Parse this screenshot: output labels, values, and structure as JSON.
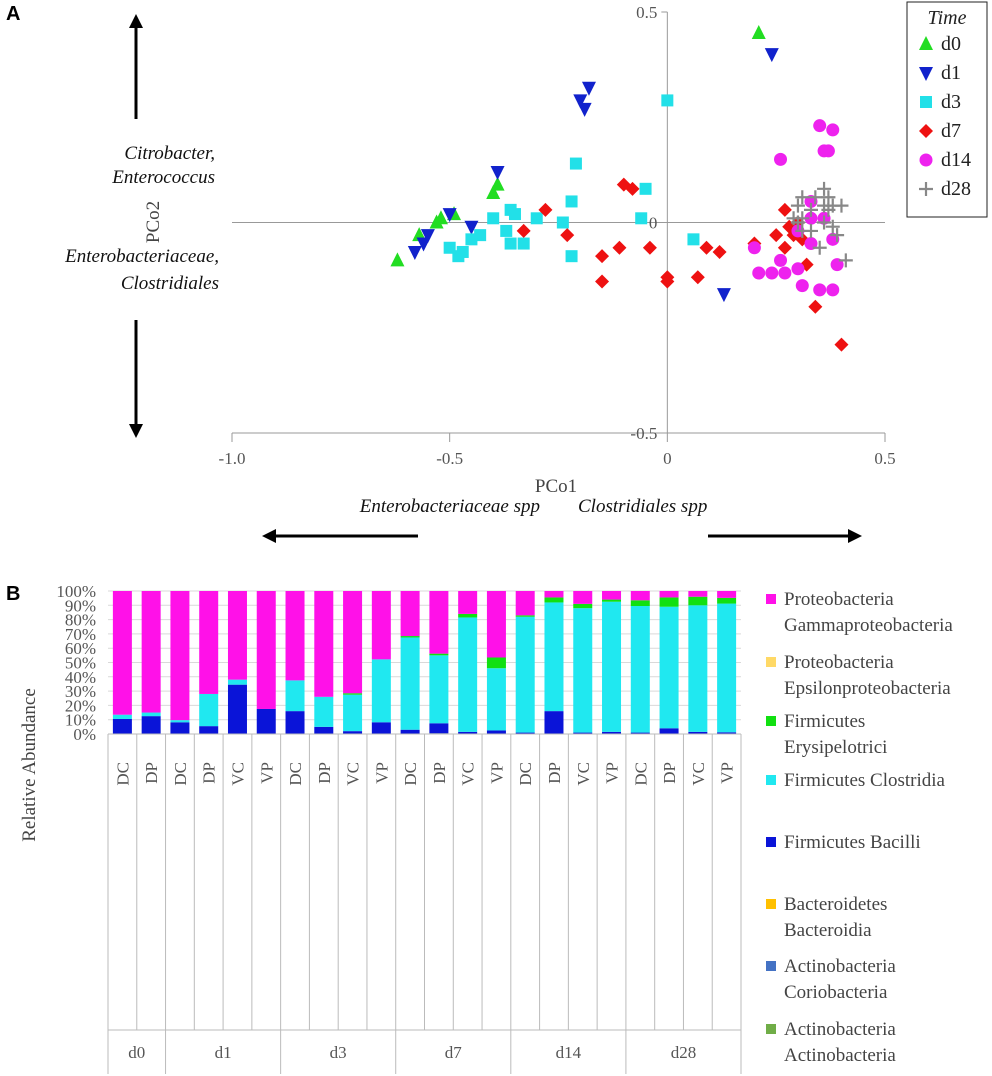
{
  "chart_data": [
    {
      "panel": "A",
      "type": "scatter",
      "xlabel": "PCo1",
      "ylabel": "PCo2",
      "xlim": [
        -1.0,
        0.5
      ],
      "ylim": [
        -0.5,
        0.5
      ],
      "xticks": [
        -1.0,
        -0.5,
        0,
        0.5
      ],
      "xtick_labels": [
        "-1.0",
        "-0.5",
        "0",
        "0.5"
      ],
      "yticks": [
        0.5,
        0,
        -0.5
      ],
      "ytick_labels": [
        "0.5",
        "0",
        "-0.5"
      ],
      "legend_title": "Time",
      "annotations": {
        "y_up_1": "Citrobacter,",
        "y_up_2": "Enterococcus",
        "y_down_1": "Enterobacteriaceae,",
        "y_down_2": "Clostridiales",
        "x_left": "Enterobacteriaceae spp",
        "x_right": "Clostridiales spp"
      },
      "series": [
        {
          "name": "d0",
          "color": "#22dd22",
          "marker": "triangle-up",
          "points": [
            [
              0.21,
              0.45
            ],
            [
              -0.62,
              -0.09
            ],
            [
              -0.53,
              0.0
            ],
            [
              -0.52,
              0.01
            ],
            [
              -0.49,
              0.02
            ],
            [
              -0.4,
              0.07
            ],
            [
              -0.39,
              0.09
            ],
            [
              -0.57,
              -0.03
            ]
          ]
        },
        {
          "name": "d1",
          "color": "#1122cc",
          "marker": "triangle-down",
          "points": [
            [
              0.24,
              0.4
            ],
            [
              -0.18,
              0.32
            ],
            [
              -0.2,
              0.29
            ],
            [
              -0.19,
              0.27
            ],
            [
              -0.39,
              0.12
            ],
            [
              -0.5,
              0.02
            ],
            [
              -0.45,
              -0.01
            ],
            [
              -0.55,
              -0.03
            ],
            [
              -0.56,
              -0.05
            ],
            [
              -0.58,
              -0.07
            ],
            [
              0.13,
              -0.17
            ]
          ]
        },
        {
          "name": "d3",
          "color": "#22e0e8",
          "marker": "square",
          "points": [
            [
              0.0,
              0.29
            ],
            [
              -0.21,
              0.14
            ],
            [
              -0.05,
              0.08
            ],
            [
              -0.22,
              0.05
            ],
            [
              -0.4,
              0.01
            ],
            [
              -0.36,
              0.03
            ],
            [
              -0.35,
              0.02
            ],
            [
              -0.33,
              -0.05
            ],
            [
              -0.37,
              -0.02
            ],
            [
              -0.36,
              -0.05
            ],
            [
              -0.22,
              -0.08
            ],
            [
              -0.06,
              0.01
            ],
            [
              0.06,
              -0.04
            ],
            [
              -0.47,
              -0.07
            ],
            [
              -0.48,
              -0.08
            ],
            [
              -0.5,
              -0.06
            ],
            [
              -0.45,
              -0.04
            ],
            [
              -0.43,
              -0.03
            ],
            [
              -0.24,
              0.0
            ],
            [
              -0.3,
              0.01
            ]
          ]
        },
        {
          "name": "d7",
          "color": "#ee1111",
          "marker": "diamond",
          "points": [
            [
              -0.1,
              0.09
            ],
            [
              -0.08,
              0.08
            ],
            [
              -0.28,
              0.03
            ],
            [
              -0.33,
              -0.02
            ],
            [
              -0.23,
              -0.03
            ],
            [
              -0.15,
              -0.08
            ],
            [
              -0.11,
              -0.06
            ],
            [
              -0.04,
              -0.06
            ],
            [
              0.0,
              -0.13
            ],
            [
              0.0,
              -0.14
            ],
            [
              0.07,
              -0.13
            ],
            [
              0.09,
              -0.06
            ],
            [
              0.12,
              -0.07
            ],
            [
              0.2,
              -0.05
            ],
            [
              -0.15,
              -0.14
            ],
            [
              0.27,
              0.03
            ],
            [
              0.25,
              -0.03
            ],
            [
              0.29,
              -0.03
            ],
            [
              0.27,
              -0.06
            ],
            [
              0.32,
              -0.1
            ],
            [
              0.4,
              -0.29
            ],
            [
              0.34,
              -0.2
            ],
            [
              0.3,
              0.0
            ],
            [
              0.28,
              -0.01
            ],
            [
              0.31,
              -0.04
            ]
          ]
        },
        {
          "name": "d14",
          "color": "#ee22ee",
          "marker": "circle",
          "points": [
            [
              0.35,
              0.23
            ],
            [
              0.38,
              0.22
            ],
            [
              0.36,
              0.17
            ],
            [
              0.37,
              0.17
            ],
            [
              0.26,
              0.15
            ],
            [
              0.33,
              0.05
            ],
            [
              0.36,
              0.01
            ],
            [
              0.38,
              -0.04
            ],
            [
              0.2,
              -0.06
            ],
            [
              0.21,
              -0.12
            ],
            [
              0.24,
              -0.12
            ],
            [
              0.27,
              -0.12
            ],
            [
              0.3,
              -0.11
            ],
            [
              0.31,
              -0.15
            ],
            [
              0.35,
              -0.16
            ],
            [
              0.38,
              -0.16
            ],
            [
              0.39,
              -0.1
            ],
            [
              0.26,
              -0.09
            ],
            [
              0.33,
              -0.05
            ],
            [
              0.3,
              -0.02
            ],
            [
              0.33,
              0.01
            ]
          ]
        },
        {
          "name": "d28",
          "color": "#888888",
          "marker": "plus",
          "points": [
            [
              0.36,
              0.08
            ],
            [
              0.34,
              0.06
            ],
            [
              0.37,
              0.06
            ],
            [
              0.38,
              0.04
            ],
            [
              0.36,
              0.04
            ],
            [
              0.4,
              0.04
            ],
            [
              0.31,
              0.06
            ],
            [
              0.3,
              0.04
            ],
            [
              0.33,
              0.03
            ],
            [
              0.37,
              0.03
            ],
            [
              0.29,
              0.01
            ],
            [
              0.31,
              0.01
            ],
            [
              0.3,
              0.0
            ],
            [
              0.36,
              0.0
            ],
            [
              0.38,
              -0.01
            ],
            [
              0.39,
              -0.03
            ],
            [
              0.35,
              -0.06
            ],
            [
              0.41,
              -0.09
            ],
            [
              0.31,
              -0.02
            ],
            [
              0.33,
              -0.02
            ]
          ]
        }
      ]
    },
    {
      "panel": "B",
      "type": "bar",
      "stacked": true,
      "ylabel": "Relative Abundance",
      "ylim": [
        0,
        100
      ],
      "ytick_labels": [
        "0%",
        "10%",
        "20%",
        "30%",
        "40%",
        "50%",
        "60%",
        "70%",
        "80%",
        "90%",
        "100%"
      ],
      "categories": [
        "DC",
        "DP",
        "DC",
        "DP",
        "VC",
        "VP",
        "DC",
        "DP",
        "VC",
        "VP",
        "DC",
        "DP",
        "VC",
        "VP",
        "DC",
        "DP",
        "VC",
        "VP",
        "DC",
        "DP",
        "VC",
        "VP"
      ],
      "groups": [
        {
          "label": "d0",
          "count": 2
        },
        {
          "label": "d1",
          "count": 4
        },
        {
          "label": "d3",
          "count": 4
        },
        {
          "label": "d7",
          "count": 4
        },
        {
          "label": "d14",
          "count": 4
        },
        {
          "label": "d28",
          "count": 4
        }
      ],
      "series": [
        {
          "name": "Actinobacteria Actinobacteria",
          "legend_lines": [
            "Actinobacteria",
            "Actinobacteria"
          ],
          "color": "#70ad47",
          "values": [
            0,
            0,
            0,
            0,
            0,
            0,
            0,
            0,
            0,
            0.2,
            0,
            0.5,
            0,
            0,
            0,
            0,
            0,
            0,
            0,
            0,
            0,
            0
          ]
        },
        {
          "name": "Actinobacteria Coriobacteria",
          "legend_lines": [
            "Actinobacteria",
            "Coriobacteria"
          ],
          "color": "#4472c4",
          "values": [
            0,
            0,
            0,
            0,
            0,
            0,
            0,
            0,
            0,
            0,
            0,
            0,
            0,
            0,
            0,
            0,
            0,
            0,
            0,
            0,
            0,
            0
          ]
        },
        {
          "name": "Bacteroidetes Bacteroidia",
          "legend_lines": [
            "Bacteroidetes",
            "Bacteroidia"
          ],
          "color": "#ffc000",
          "values": [
            0,
            0,
            0,
            0,
            0,
            0,
            0,
            0,
            0,
            0,
            0,
            0,
            0,
            0,
            0,
            0,
            0,
            0,
            0,
            0,
            0,
            0
          ]
        },
        {
          "name": "Firmicutes Bacilli",
          "legend_lines": [
            "Firmicutes Bacilli"
          ],
          "color": "#0a14d8",
          "values": [
            10.5,
            12.5,
            8.2,
            5.5,
            34.5,
            17.5,
            16,
            5,
            2,
            8,
            3,
            7,
            1.5,
            2.5,
            1,
            16,
            1,
            1.5,
            1,
            4,
            1.5,
            1.2
          ]
        },
        {
          "name": "Firmicutes Clostridia",
          "legend_lines": [
            "Firmicutes Clostridia"
          ],
          "color": "#20e8f0",
          "values": [
            3,
            2.5,
            1.5,
            22.5,
            3.5,
            0,
            21.5,
            21,
            25.5,
            44,
            64.5,
            47.5,
            80,
            43.5,
            81,
            76,
            87,
            91,
            88.5,
            85,
            88.5,
            90
          ]
        },
        {
          "name": "Firmicutes Erysipelotrici",
          "legend_lines": [
            "Firmicutes",
            "Erysipelotrici"
          ],
          "color": "#11e011",
          "values": [
            0,
            0,
            0,
            0,
            0,
            0,
            0,
            0,
            1,
            0,
            1,
            1.2,
            2.5,
            7.5,
            1,
            3.5,
            3,
            1.5,
            4,
            6.5,
            6,
            4
          ]
        },
        {
          "name": "Proteobacteria Epsilonproteobacteria",
          "legend_lines": [
            "Proteobacteria",
            "Epsilonproteobacteria"
          ],
          "color": "#ffd966",
          "values": [
            0,
            0,
            0,
            0,
            0,
            0,
            0,
            0,
            0,
            0,
            0,
            0,
            0,
            0,
            0,
            0,
            0,
            0,
            0,
            0,
            0,
            0
          ]
        },
        {
          "name": "Proteobacteria Gammaproteobacteria",
          "legend_lines": [
            "Proteobacteria",
            "Gammaproteobacteria"
          ],
          "color": "#ff11e8",
          "values": [
            86.5,
            85,
            90.3,
            72,
            62,
            82.5,
            62.5,
            74,
            71.5,
            47.8,
            31.5,
            43.8,
            16,
            46.5,
            17,
            4.5,
            9,
            6,
            6.5,
            4.5,
            4,
            4.8
          ]
        }
      ]
    }
  ]
}
